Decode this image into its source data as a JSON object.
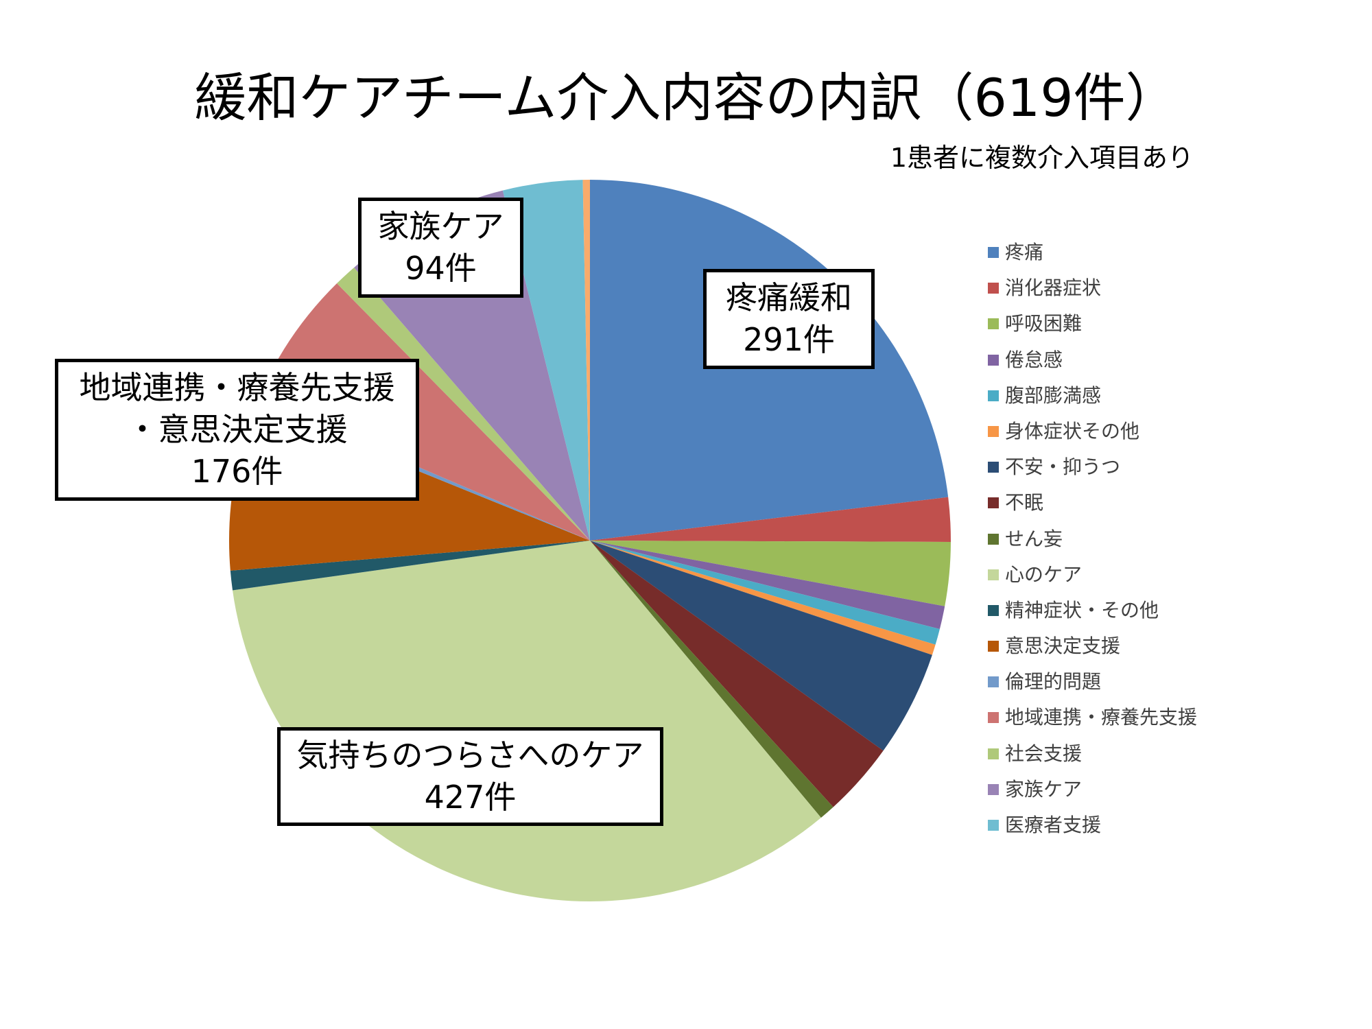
{
  "chart_data": {
    "type": "pie",
    "title": "緩和ケアチーム介入内容の内訳（619件）",
    "subtitle": "1患者に複数介入項目あり",
    "legend_position": "right",
    "slices": [
      {
        "label": "疼痛",
        "value": 291,
        "color": "#4F81BD"
      },
      {
        "label": "消化器症状",
        "value": 25,
        "color": "#C0504D"
      },
      {
        "label": "呼吸困難",
        "value": 36,
        "color": "#9BBB59"
      },
      {
        "label": "倦怠感",
        "value": 13,
        "color": "#8064A2"
      },
      {
        "label": "腹部膨満感",
        "value": 9,
        "color": "#4BACC6"
      },
      {
        "label": "身体症状その他",
        "value": 6,
        "color": "#F79646"
      },
      {
        "label": "不安・抑うつ",
        "value": 60,
        "color": "#2C4D75"
      },
      {
        "label": "不眠",
        "value": 42,
        "color": "#772C2A"
      },
      {
        "label": "せん妄",
        "value": 9,
        "color": "#5F7530"
      },
      {
        "label": "心のケア",
        "value": 427,
        "color": "#C4D79B"
      },
      {
        "label": "精神症状・その他",
        "value": 11,
        "color": "#215968"
      },
      {
        "label": "意思決定支援",
        "value": 94,
        "color": "#B65708"
      },
      {
        "label": "倫理的問題",
        "value": 4,
        "color": "#729ACA"
      },
      {
        "label": "地域連携・療養先支援",
        "value": 78,
        "color": "#CD7371"
      },
      {
        "label": "社会支援",
        "value": 13,
        "color": "#AFC97A"
      },
      {
        "label": "家族ケア",
        "value": 94,
        "color": "#9983B5"
      },
      {
        "label": "医療者支援",
        "value": 45,
        "color": "#6FBDD1"
      },
      {
        "label": "",
        "value": 4,
        "color": "#F9AB6B"
      }
    ],
    "annotations": [
      {
        "id": "pain",
        "lines": [
          "疼痛緩和",
          "291件"
        ]
      },
      {
        "id": "family",
        "lines": [
          "家族ケア",
          "94件"
        ]
      },
      {
        "id": "community",
        "lines": [
          "地域連携・療養先支援",
          "・意思決定支援",
          "176件"
        ]
      },
      {
        "id": "mental",
        "lines": [
          "気持ちのつらさへのケア",
          "427件"
        ]
      }
    ]
  }
}
